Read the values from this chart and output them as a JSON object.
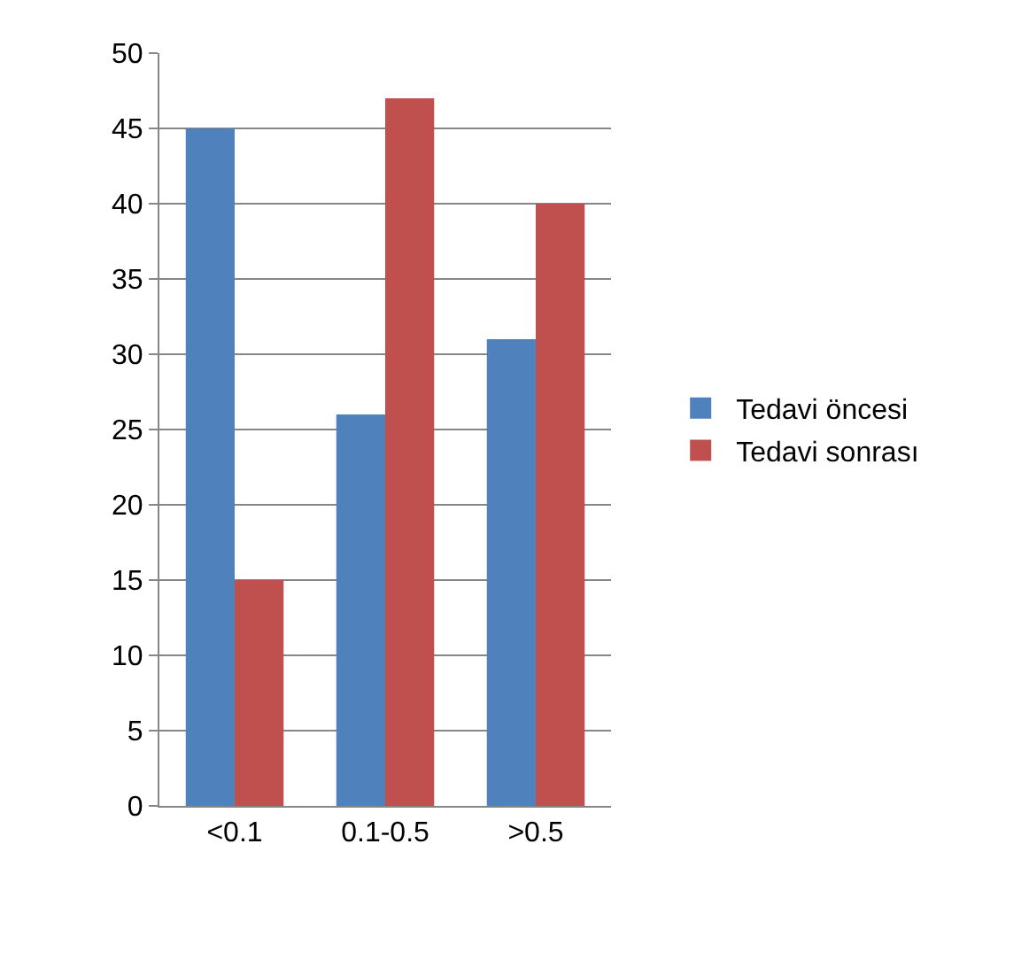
{
  "chart_data": {
    "type": "bar",
    "categories": [
      "<0.1",
      "0.1-0.5",
      ">0.5"
    ],
    "series": [
      {
        "name": "Tedavi öncesi",
        "color": "#4f81bd",
        "values": [
          45,
          26,
          31
        ]
      },
      {
        "name": "Tedavi sonrası",
        "color": "#c0504d",
        "values": [
          15,
          47,
          40
        ]
      }
    ],
    "ylim": [
      0,
      50
    ],
    "yticks": [
      0,
      5,
      10,
      15,
      20,
      25,
      30,
      35,
      40,
      45,
      50
    ],
    "grid": "y",
    "legend": "right"
  }
}
